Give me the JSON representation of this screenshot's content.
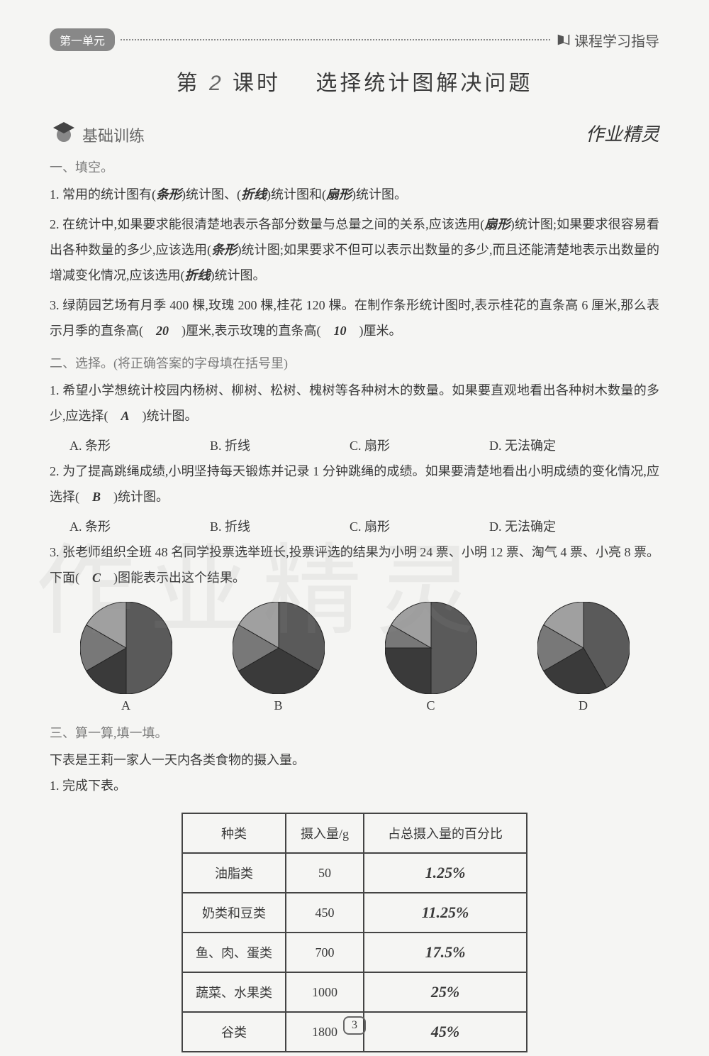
{
  "header": {
    "unit_badge": "第一单元",
    "course_guide": "课程学习指导"
  },
  "lesson_title_prefix": "第",
  "lesson_number": "2",
  "lesson_title_mid": "课时",
  "lesson_title_main": "选择统计图解决问题",
  "basic_training_label": "基础训练",
  "handwriting_note": "作业精灵",
  "watermark_text": "作业精灵",
  "sec1": {
    "heading": "一、填空。",
    "q1_pre": "1. 常用的统计图有(",
    "q1_a1": "条形",
    "q1_mid1": ")统计图、(",
    "q1_a2": "折线",
    "q1_mid2": ")统计图和(",
    "q1_a3": "扇形",
    "q1_end": ")统计图。",
    "q2_pre": "2. 在统计中,如果要求能很清楚地表示各部分数量与总量之间的关系,应该选用(",
    "q2_a1": "扇形",
    "q2_mid1": ")统计图;如果要求很容易看出各种数量的多少,应该选用(",
    "q2_a2": "条形",
    "q2_mid2": ")统计图;如果要求不但可以表示出数量的多少,而且还能清楚地表示出数量的增减变化情况,应该选用(",
    "q2_a3": "折线",
    "q2_end": ")统计图。",
    "q3_pre": "3. 绿荫园艺场有月季 400 棵,玫瑰 200 棵,桂花 120 棵。在制作条形统计图时,表示桂花的直条高 6 厘米,那么表示月季的直条高(　",
    "q3_a1": "20",
    "q3_mid": "　)厘米,表示玫瑰的直条高(　",
    "q3_a2": "10",
    "q3_end": "　)厘米。"
  },
  "sec2": {
    "heading": "二、选择。(将正确答案的字母填在括号里)",
    "q1_text": "1. 希望小学想统计校园内杨树、柳树、松树、槐树等各种树木的数量。如果要直观地看出各种树木数量的多少,应选择(　",
    "q1_ans": "A",
    "q1_end": "　)统计图。",
    "opts1": {
      "a": "A. 条形",
      "b": "B. 折线",
      "c": "C. 扇形",
      "d": "D. 无法确定"
    },
    "q2_text": "2. 为了提高跳绳成绩,小明坚持每天锻炼并记录 1 分钟跳绳的成绩。如果要清楚地看出小明成绩的变化情况,应选择(　",
    "q2_ans": "B",
    "q2_end": "　)统计图。",
    "opts2": {
      "a": "A. 条形",
      "b": "B. 折线",
      "c": "C. 扇形",
      "d": "D. 无法确定"
    },
    "q3_text": "3. 张老师组织全班 48 名同学投票选举班长,投票评选的结果为小明 24 票、小明 12 票、淘气 4 票、小亮 8 票。下面(　",
    "q3_ans": "C",
    "q3_end": "　)图能表示出这个结果。"
  },
  "pies": {
    "diameter": 130,
    "labels": [
      "A",
      "B",
      "C",
      "D"
    ],
    "colors": {
      "s1": "#5a5a5a",
      "s2": "#3a3a3a",
      "s3": "#787878",
      "s4": "#a0a0a0"
    },
    "A": [
      180,
      60,
      60,
      60
    ],
    "B": [
      120,
      120,
      60,
      60
    ],
    "C": [
      180,
      90,
      30,
      60
    ],
    "D": [
      150,
      90,
      60,
      60
    ]
  },
  "sec3": {
    "heading": "三、算一算,填一填。",
    "intro": "下表是王莉一家人一天内各类食物的摄入量。",
    "sub1": "1. 完成下表。",
    "table": {
      "cols": [
        "种类",
        "摄入量/g",
        "占总摄入量的百分比"
      ],
      "rows": [
        {
          "kind": "油脂类",
          "amount": "50",
          "pct": "1.25%"
        },
        {
          "kind": "奶类和豆类",
          "amount": "450",
          "pct": "11.25%"
        },
        {
          "kind": "鱼、肉、蛋类",
          "amount": "700",
          "pct": "17.5%"
        },
        {
          "kind": "蔬菜、水果类",
          "amount": "1000",
          "pct": "25%"
        },
        {
          "kind": "谷类",
          "amount": "1800",
          "pct": "45%"
        }
      ]
    }
  },
  "page_number": "3"
}
